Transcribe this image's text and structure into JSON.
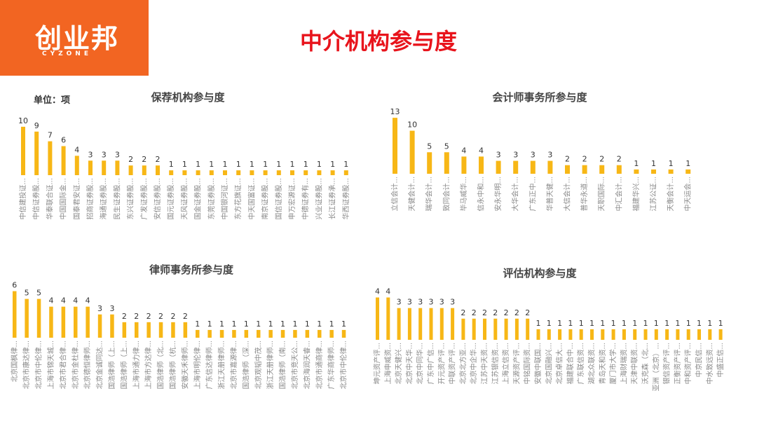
{
  "header": {
    "logo_text": "创业邦",
    "logo_sub": "CYZONE",
    "title": "中介机构参与度"
  },
  "unit_label": "单位：项",
  "colors": {
    "bar": "#f7b716",
    "brand": "#f26522",
    "title": "#e8141c"
  },
  "chart_data": [
    {
      "type": "bar",
      "title": "保荐机构参与度",
      "categories": [
        "中信建投证...",
        "中信证券股...",
        "华泰联合证...",
        "中国国际金...",
        "国泰君安证...",
        "招商证券股...",
        "海通证券股...",
        "民生证券股...",
        "东兴证券股...",
        "广发证券股...",
        "安信证券股...",
        "国元证券股...",
        "天风证券股...",
        "国金证券股...",
        "东莞证券股...",
        "中国银河证...",
        "东方花旗证...",
        "中天国富证...",
        "南京证券股...",
        "国信证券股...",
        "申万宏源证...",
        "中德证券有...",
        "兴业证券股...",
        "长江证券承...",
        "华西证券股..."
      ],
      "values": [
        10,
        9,
        7,
        6,
        4,
        3,
        3,
        3,
        2,
        2,
        2,
        1,
        1,
        1,
        1,
        1,
        1,
        1,
        1,
        1,
        1,
        1,
        1,
        1,
        1
      ],
      "ylim": [
        0,
        11
      ]
    },
    {
      "type": "bar",
      "title": "会计师事务所参与度",
      "categories": [
        "立信会计...",
        "天健会计...",
        "瑞华会计...",
        "致同会计...",
        "毕马威华...",
        "信永中和...",
        "安永华明...",
        "大华会计...",
        "广东正中...",
        "华普天健...",
        "大信会计...",
        "普华永道...",
        "天职国际...",
        "中汇会计...",
        "福建华兴...",
        "江苏公证...",
        "天衡会计...",
        "中天运会..."
      ],
      "values": [
        13,
        10,
        5,
        5,
        4,
        4,
        3,
        3,
        3,
        3,
        2,
        2,
        2,
        2,
        1,
        1,
        1,
        1
      ],
      "ylim": [
        0,
        14
      ]
    },
    {
      "type": "bar",
      "title": "律师事务所参与度",
      "categories": [
        "北京国枫律...",
        "北京市康达律...",
        "北京市中伦律...",
        "上海市锦天城...",
        "北京市君合律...",
        "北京市金杜律...",
        "北京德恒律师...",
        "北京金诚同达...",
        "国浩律师（上...",
        "国浩律师（上...",
        "上海市通力律...",
        "上海市方达律...",
        "国浩律师（北...",
        "国浩律师（杭...",
        "安徽天禾律师...",
        "上海市明伦律...",
        "广东信达律师...",
        "浙江天册律师...",
        "北京市嘉源律...",
        "国浩律师（深...",
        "北京观韬中茂...",
        "浙江天册律师...",
        "国浩律师（南...",
        "北京市竞天公...",
        "北京海润天睿...",
        "北京市通商律...",
        "广东华商律师...",
        "北京市中伦律..."
      ],
      "values": [
        6,
        5,
        5,
        4,
        4,
        4,
        4,
        3,
        3,
        2,
        2,
        2,
        2,
        2,
        2,
        1,
        1,
        1,
        1,
        1,
        1,
        1,
        1,
        1,
        1,
        1,
        1,
        1
      ],
      "ylim": [
        0,
        6.5
      ]
    },
    {
      "type": "bar",
      "title": "评估机构参与度",
      "categories": [
        "坤元资产评...",
        "上海申威资...",
        "北京天健兴...",
        "北京中天华...",
        "北京中同华...",
        "广东中广信...",
        "开元资产评...",
        "中联资产评...",
        "北京北方亚...",
        "北京中企华...",
        "江苏中天资...",
        "江苏银信资...",
        "上海立信资...",
        "天源资产评...",
        "中铭国际资...",
        "安徽中联国...",
        "北京国融兴...",
        "北京卓信大...",
        "福建联合中...",
        "广东联信资...",
        "湖北众联资...",
        "青岛天和资...",
        "厦门市大学...",
        "上海财瑞资...",
        "天津中联资...",
        "沃克森（北...",
        "亚洲（北京）...",
        "银信资产评...",
        "正衡资产评...",
        "中和资产评...",
        "中京民信...",
        "中水致远资...",
        "中盛正信..."
      ],
      "values": [
        4,
        4,
        3,
        3,
        3,
        3,
        3,
        3,
        2,
        2,
        2,
        2,
        2,
        2,
        2,
        1,
        1,
        1,
        1,
        1,
        1,
        1,
        1,
        1,
        1,
        1,
        1,
        1,
        1,
        1,
        1,
        1,
        1
      ],
      "ylim": [
        0,
        4.5
      ]
    }
  ]
}
